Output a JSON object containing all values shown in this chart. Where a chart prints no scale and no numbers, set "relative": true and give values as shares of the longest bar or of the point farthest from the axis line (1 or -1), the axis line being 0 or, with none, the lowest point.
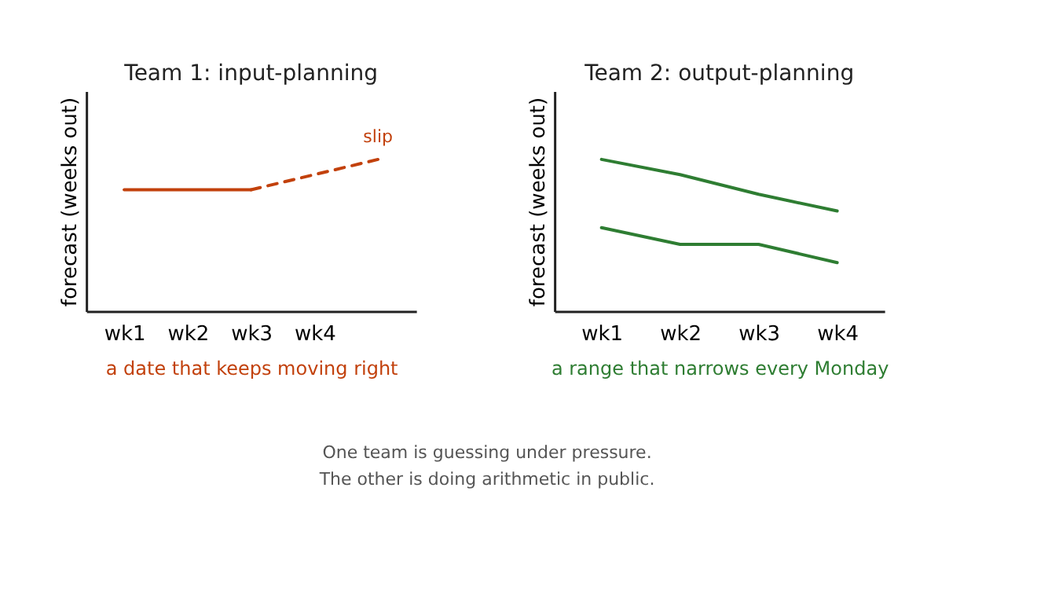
{
  "chart_data": [
    {
      "type": "line",
      "title": "Team 1: input-planning",
      "ylabel": "forecast (weeks out)",
      "xlabel": "a date that keeps moving right",
      "relative": true,
      "categories": [
        "wk1",
        "wk2",
        "wk3",
        "wk4",
        null
      ],
      "tick_labels": "x",
      "grid": false,
      "legend": false,
      "marker": "none",
      "series": [
        {
          "color": "#c2410c",
          "line_style": "solid",
          "values": [
            0.8,
            0.8,
            0.8,
            null,
            null
          ]
        },
        {
          "name": "slip",
          "color": "#c2410c",
          "line_style": "dashed",
          "values": [
            null,
            null,
            0.8,
            0.9,
            1
          ]
        }
      ]
    },
    {
      "type": "line",
      "title": "Team 2: output-planning",
      "ylabel": "forecast (weeks out)",
      "xlabel": "a range that narrows every Monday",
      "relative": true,
      "categories": [
        "wk1",
        "wk2",
        "wk3",
        "wk4"
      ],
      "tick_labels": "x",
      "grid": false,
      "legend": false,
      "marker": "none",
      "series": [
        {
          "color": "#2e7d32",
          "line_style": "solid",
          "values": [
            1,
            0.9,
            0.77,
            0.66
          ]
        },
        {
          "color": "#2e7d32",
          "line_style": "solid",
          "values": [
            0.55,
            0.44,
            0.44,
            0.32
          ]
        }
      ]
    },
    {
      "type": "other",
      "annotations": [
        "One team is guessing under pressure.",
        "The other is doing arithmetic in public."
      ]
    }
  ]
}
